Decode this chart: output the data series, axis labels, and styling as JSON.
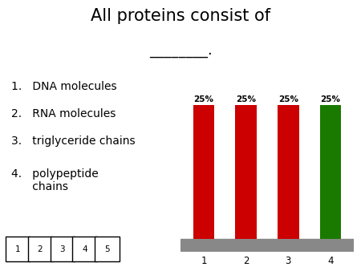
{
  "title_line1": "All proteins consist of",
  "title_line2": "________.",
  "categories": [
    "1",
    "2",
    "3",
    "4"
  ],
  "values": [
    25,
    25,
    25,
    25
  ],
  "bar_colors": [
    "#cc0000",
    "#cc0000",
    "#cc0000",
    "#1a7a00"
  ],
  "bar_labels": [
    "25%",
    "25%",
    "25%",
    "25%"
  ],
  "answer_choices": [
    "1.   DNA molecules",
    "2.   RNA molecules",
    "3.   triglyceride chains",
    "4.   polypeptide\n      chains"
  ],
  "vote_buttons": [
    "1",
    "2",
    "3",
    "4",
    "5"
  ],
  "background_color": "#ffffff",
  "platform_color": "#888888",
  "bar_width": 0.5
}
